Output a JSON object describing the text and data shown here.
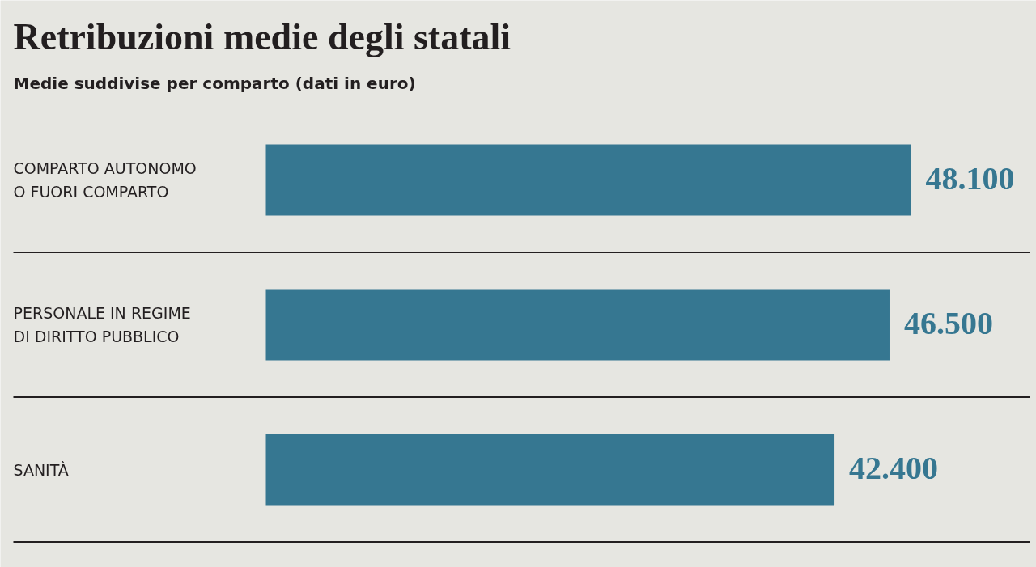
{
  "chart_data": {
    "type": "bar",
    "orientation": "horizontal",
    "title": "Retribuzioni medie degli statali",
    "subtitle": "Medie suddivise per comparto (dati in euro)",
    "categories": [
      "COMPARTO AUTONOMO\nO FUORI COMPARTO",
      "PERSONALE IN REGIME\nDI DIRITTO PUBBLICO",
      "SANITÀ"
    ],
    "values": [
      48100,
      46500,
      42400
    ],
    "value_labels": [
      "48.100",
      "46.500",
      "42.400"
    ],
    "color": "#367791",
    "grid": "y"
  }
}
